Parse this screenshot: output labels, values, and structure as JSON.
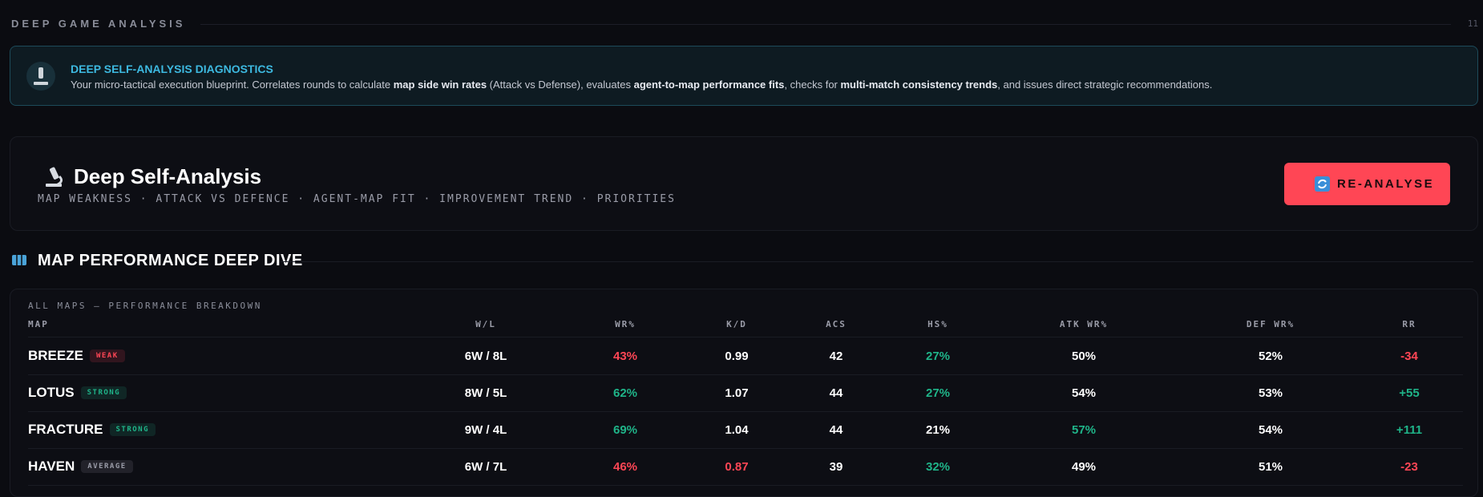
{
  "header": {
    "title": "DEEP GAME ANALYSIS",
    "index": "11"
  },
  "banner": {
    "title": "DEEP SELF-ANALYSIS DIAGNOSTICS",
    "description": [
      {
        "text": "Your micro-tactical execution blueprint. Correlates rounds to calculate ",
        "bold": false
      },
      {
        "text": "map side win rates",
        "bold": true
      },
      {
        "text": " (Attack vs Defense), evaluates ",
        "bold": false
      },
      {
        "text": "agent-to-map performance fits",
        "bold": true
      },
      {
        "text": ", checks for ",
        "bold": false
      },
      {
        "text": "multi-match consistency trends",
        "bold": true
      },
      {
        "text": ", and issues direct strategic recommendations.",
        "bold": false
      }
    ]
  },
  "card": {
    "title": "Deep Self-Analysis",
    "subtitle": "MAP WEAKNESS · ATTACK VS DEFENCE · AGENT-MAP FIT · IMPROVEMENT TREND · PRIORITIES",
    "button": "RE-ANALYSE"
  },
  "section": {
    "title": "MAP PERFORMANCE DEEP DIVE"
  },
  "table": {
    "caption": "ALL MAPS — PERFORMANCE BREAKDOWN",
    "columns": [
      "MAP",
      "W/L",
      "WR%",
      "K/D",
      "ACS",
      "HS%",
      "ATK WR%",
      "DEF WR%",
      "RR"
    ],
    "rows": [
      {
        "map": "BREEZE",
        "tag": "WEAK",
        "tag_color": "#ff4655",
        "cells": [
          "6W / 8L",
          "43%",
          "0.99",
          "42",
          "27%",
          "50%",
          "52%",
          "-34"
        ],
        "colors": [
          "#ffffff",
          "#ff4655",
          "#ffffff",
          "#ffffff",
          "#1fb489",
          "#ffffff",
          "#ffffff",
          "#ff4655"
        ]
      },
      {
        "map": "LOTUS",
        "tag": "STRONG",
        "tag_color": "#1fb489",
        "cells": [
          "8W / 5L",
          "62%",
          "1.07",
          "44",
          "27%",
          "54%",
          "53%",
          "+55"
        ],
        "colors": [
          "#ffffff",
          "#1fb489",
          "#ffffff",
          "#ffffff",
          "#1fb489",
          "#ffffff",
          "#ffffff",
          "#1fb489"
        ]
      },
      {
        "map": "FRACTURE",
        "tag": "STRONG",
        "tag_color": "#1fb489",
        "cells": [
          "9W / 4L",
          "69%",
          "1.04",
          "44",
          "21%",
          "57%",
          "54%",
          "+111"
        ],
        "colors": [
          "#ffffff",
          "#1fb489",
          "#ffffff",
          "#ffffff",
          "#ffffff",
          "#1fb489",
          "#ffffff",
          "#1fb489"
        ]
      },
      {
        "map": "HAVEN",
        "tag": "AVERAGE",
        "tag_color": "#9a9ca8",
        "cells": [
          "6W / 7L",
          "46%",
          "0.87",
          "39",
          "32%",
          "49%",
          "51%",
          "-23"
        ],
        "colors": [
          "#ffffff",
          "#ff4655",
          "#ff4655",
          "#ffffff",
          "#1fb489",
          "#ffffff",
          "#ffffff",
          "#ff4655"
        ]
      }
    ]
  }
}
